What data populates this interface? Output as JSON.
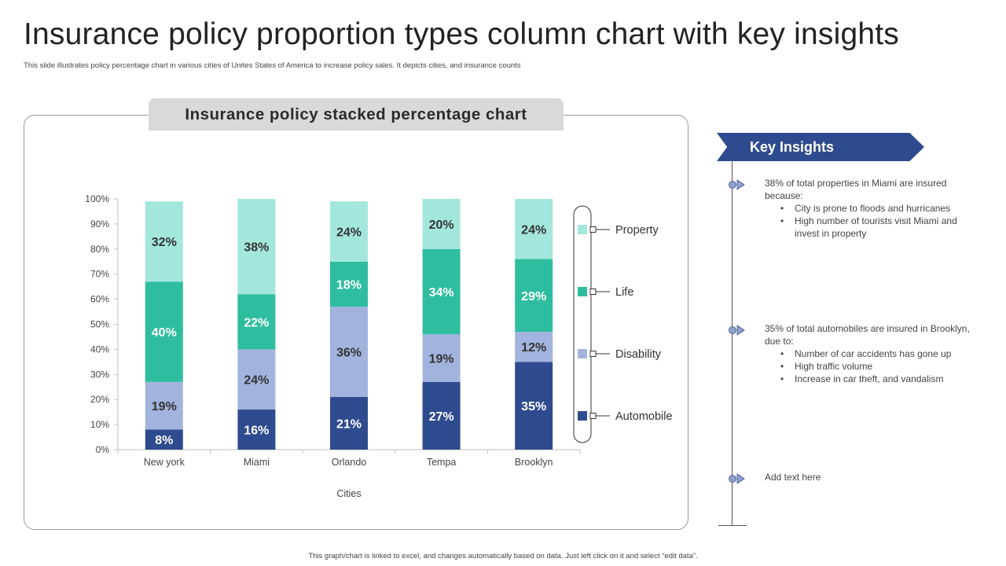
{
  "header": {
    "title": "Insurance policy proportion types column chart with key insights",
    "subtitle": "This slide illustrates policy percentage chart in various cities of Unites States of America to increase policy sales. It depicts cities, and insurance counts"
  },
  "chart_data": {
    "type": "bar",
    "stacked": true,
    "title": "Insurance policy stacked percentage chart",
    "xlabel": "Cities",
    "ylabel": "",
    "ylim": [
      0,
      100
    ],
    "yticks": [
      "0%",
      "10%",
      "20%",
      "30%",
      "40%",
      "50%",
      "60%",
      "70%",
      "80%",
      "90%",
      "100%"
    ],
    "categories": [
      "New york",
      "Miami",
      "Orlando",
      "Tempa",
      "Brooklyn"
    ],
    "series": [
      {
        "name": "Automobile",
        "color": "#2f4b8f",
        "label_color": "#ffffff",
        "values": [
          8,
          16,
          21,
          27,
          35
        ]
      },
      {
        "name": "Disability",
        "color": "#a2b3de",
        "label_color": "#333333",
        "values": [
          19,
          24,
          36,
          19,
          12
        ]
      },
      {
        "name": "Life",
        "color": "#2ebd9f",
        "label_color": "#ffffff",
        "values": [
          40,
          22,
          18,
          34,
          29
        ]
      },
      {
        "name": "Property",
        "color": "#a3e7dc",
        "label_color": "#333333",
        "values": [
          32,
          38,
          24,
          20,
          24
        ]
      }
    ],
    "legend_order": [
      "Property",
      "Life",
      "Disability",
      "Automobile"
    ],
    "legend": "right"
  },
  "insights": {
    "title": "Key Insights",
    "marker_color": "#8fa2cc",
    "items": [
      {
        "text": "38% of total properties in Miami are insured because:",
        "bullets": [
          "City is prone to floods and hurricanes",
          "High number of tourists visit Miami and invest  in property"
        ]
      },
      {
        "text": "35% of total automobiles are insured in Brooklyn, due to:",
        "bullets": [
          "Number of car accidents has gone up",
          "High traffic volume",
          "Increase in car theft, and vandalism"
        ]
      },
      {
        "text": "Add text here",
        "bullets": []
      }
    ]
  },
  "footer": {
    "note": "This graph/chart is linked to excel, and changes automatically based on data. Just left click on it and select “edit data”."
  }
}
